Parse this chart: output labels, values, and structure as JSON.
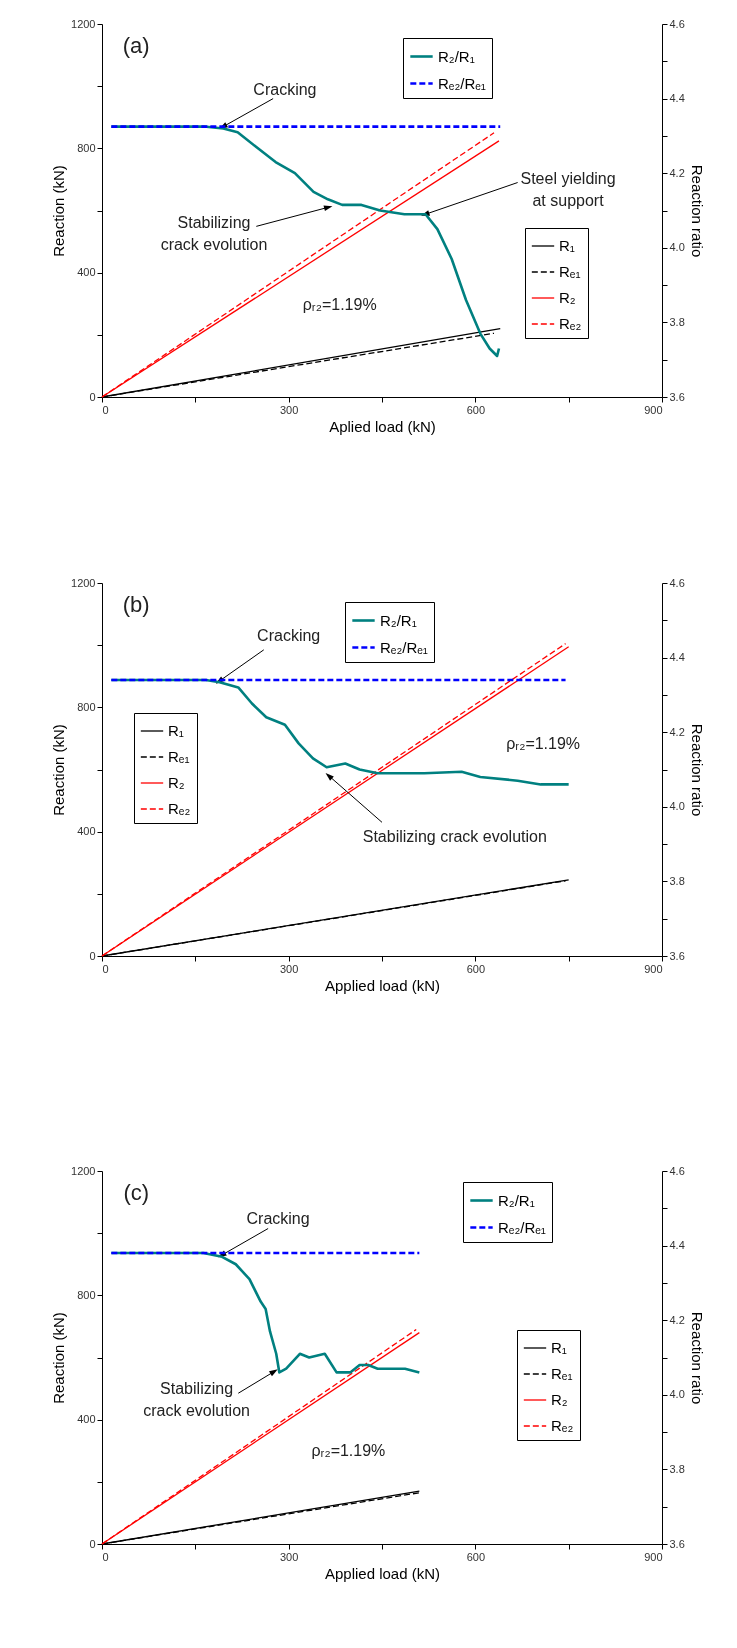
{
  "chart_data": [
    {
      "type": "line",
      "xlabel": "Aplied load (kN)",
      "ylabel": "Reaction (kN)",
      "y2label": "Reaction ratio",
      "xlim": [
        0,
        900
      ],
      "ylim": [
        0,
        1200
      ],
      "y2lim": [
        3.6,
        4.6
      ],
      "xticks": [
        0,
        {
          "value": 150,
          "label": null
        },
        300,
        {
          "value": 450,
          "label": null
        },
        600,
        {
          "value": 750,
          "label": null
        },
        900
      ],
      "yticks": [
        0,
        {
          "value": 200,
          "label": null
        },
        400,
        {
          "value": 600,
          "label": null
        },
        800,
        {
          "value": 1000,
          "label": null
        },
        1200
      ],
      "y2ticks": [
        3.6,
        {
          "value": 3.7,
          "label": null
        },
        3.8,
        {
          "value": 3.9,
          "label": null
        },
        {
          "value": 4,
          "label": "4.0"
        },
        {
          "value": 4.1,
          "label": null
        },
        4.2,
        {
          "value": 4.3,
          "label": null
        },
        4.4,
        {
          "value": 4.5,
          "label": null
        },
        4.6
      ],
      "legend": "top right",
      "series": [
        {
          "name": "R₁",
          "color": "#000000",
          "line_style": "solid",
          "x": [
            0,
            640
          ],
          "values": [
            0,
            220
          ]
        },
        {
          "name": "Rₑ₁",
          "color": "#000000",
          "line_style": "dashed",
          "x": [
            0,
            630
          ],
          "values": [
            0,
            205
          ]
        },
        {
          "name": "R₂",
          "color": "#ff0000",
          "line_style": "solid",
          "x": [
            0,
            638
          ],
          "values": [
            0,
            824
          ]
        },
        {
          "name": "Rₑ₂",
          "color": "#ff0000",
          "line_style": "dashed",
          "x": [
            0,
            630
          ],
          "values": [
            0,
            850
          ]
        },
        {
          "name": "R₂/R₁",
          "color": "#008080",
          "line_style": "solid",
          "axis": "y2",
          "x": [
            15,
            164,
            195,
            218,
            248,
            279,
            310,
            340,
            363,
            386,
            417,
            447,
            486,
            520,
            539,
            562,
            585,
            608,
            623,
            635,
            638
          ],
          "values": [
            4.325,
            4.325,
            4.32,
            4.31,
            4.27,
            4.23,
            4.2,
            4.15,
            4.13,
            4.115,
            4.115,
            4.1,
            4.09,
            4.09,
            4.05,
            3.97,
            3.86,
            3.77,
            3.73,
            3.71,
            3.73
          ]
        },
        {
          "name": "Rₑ₂/Rₑ₁",
          "color": "#0000ff",
          "line_style": "dashed",
          "axis": "y2",
          "x": [
            15,
            640
          ],
          "values": [
            4.325,
            4.325
          ]
        }
      ],
      "annotations": [
        "(a)",
        {
          "text": "Cracking",
          "x": 195,
          "y": 870
        },
        {
          "text": "Stabilizing\ncrack evolution",
          "x": 363,
          "y": 610
        },
        {
          "text": "Steel yielding\nat support",
          "x": 520,
          "y": 588
        },
        "ρᵣ₂=1.19%"
      ]
    },
    {
      "type": "line",
      "xlabel": "Applied load (kN)",
      "ylabel": "Reaction (kN)",
      "y2label": "Reaction ratio",
      "xlim": [
        0,
        900
      ],
      "ylim": [
        0,
        1200
      ],
      "y2lim": [
        3.6,
        4.6
      ],
      "xticks": [
        0,
        {
          "value": 150,
          "label": null
        },
        300,
        {
          "value": 450,
          "label": null
        },
        600,
        {
          "value": 750,
          "label": null
        },
        900
      ],
      "yticks": [
        0,
        {
          "value": 200,
          "label": null
        },
        400,
        {
          "value": 600,
          "label": null
        },
        800,
        {
          "value": 1000,
          "label": null
        },
        1200
      ],
      "y2ticks": [
        3.6,
        {
          "value": 3.7,
          "label": null
        },
        3.8,
        {
          "value": 3.9,
          "label": null
        },
        {
          "value": 4,
          "label": "4.0"
        },
        {
          "value": 4.1,
          "label": null
        },
        4.2,
        {
          "value": 4.3,
          "label": null
        },
        4.4,
        {
          "value": 4.5,
          "label": null
        },
        4.6
      ],
      "legend": "top",
      "series": [
        {
          "name": "R₁",
          "color": "#000000",
          "line_style": "solid",
          "x": [
            0,
            750
          ],
          "values": [
            0,
            245
          ]
        },
        {
          "name": "Rₑ₁",
          "color": "#000000",
          "line_style": "dashed",
          "x": [
            0,
            745
          ],
          "values": [
            0,
            242
          ]
        },
        {
          "name": "R₂",
          "color": "#ff0000",
          "line_style": "solid",
          "x": [
            0,
            750
          ],
          "values": [
            0,
            995
          ]
        },
        {
          "name": "Rₑ₂",
          "color": "#ff0000",
          "line_style": "dashed",
          "x": [
            0,
            745
          ],
          "values": [
            0,
            1005
          ]
        },
        {
          "name": "R₂/R₁",
          "color": "#008080",
          "line_style": "solid",
          "axis": "y2",
          "x": [
            15,
            167,
            189,
            219,
            241,
            264,
            294,
            316,
            339,
            361,
            391,
            414,
            443,
            518,
            578,
            608,
            668,
            705,
            750
          ],
          "values": [
            4.34,
            4.34,
            4.334,
            4.32,
            4.277,
            4.24,
            4.22,
            4.17,
            4.13,
            4.106,
            4.116,
            4.1,
            4.09,
            4.09,
            4.094,
            4.08,
            4.07,
            4.06,
            4.06
          ]
        },
        {
          "name": "Rₑ₂/Rₑ₁",
          "color": "#0000ff",
          "line_style": "dashed",
          "axis": "y2",
          "x": [
            15,
            745
          ],
          "values": [
            4.34,
            4.34
          ]
        }
      ],
      "annotations": [
        "(b)",
        {
          "text": "Cracking",
          "x": 189,
          "y": 885
        },
        {
          "text": "Stabilizing crack evolution",
          "x": 365,
          "y": 579
        },
        "ρᵣ₂=1.19%"
      ]
    },
    {
      "type": "line",
      "xlabel": "Applied load (kN)",
      "ylabel": "Reaction (kN)",
      "y2label": "Reaction ratio",
      "xlim": [
        0,
        900
      ],
      "ylim": [
        0,
        1200
      ],
      "y2lim": [
        3.6,
        4.6
      ],
      "xticks": [
        0,
        {
          "value": 150,
          "label": null
        },
        300,
        {
          "value": 450,
          "label": null
        },
        600,
        {
          "value": 750,
          "label": null
        },
        900
      ],
      "yticks": [
        0,
        {
          "value": 200,
          "label": null
        },
        400,
        {
          "value": 600,
          "label": null
        },
        800,
        {
          "value": 1000,
          "label": null
        },
        1200
      ],
      "y2ticks": [
        3.6,
        {
          "value": 3.7,
          "label": null
        },
        3.8,
        {
          "value": 3.9,
          "label": null
        },
        {
          "value": 4,
          "label": "4.0"
        },
        {
          "value": 4.1,
          "label": null
        },
        4.2,
        {
          "value": 4.3,
          "label": null
        },
        4.4,
        {
          "value": 4.5,
          "label": null
        },
        4.6
      ],
      "legend": "top right",
      "series": [
        {
          "name": "R₁",
          "color": "#000000",
          "line_style": "solid",
          "x": [
            0,
            510
          ],
          "values": [
            0,
            170
          ]
        },
        {
          "name": "Rₑ₁",
          "color": "#000000",
          "line_style": "dashed",
          "x": [
            0,
            510
          ],
          "values": [
            0,
            165
          ]
        },
        {
          "name": "R₂",
          "color": "#ff0000",
          "line_style": "solid",
          "x": [
            0,
            510
          ],
          "values": [
            0,
            680
          ]
        },
        {
          "name": "Rₑ₂",
          "color": "#ff0000",
          "line_style": "dashed",
          "x": [
            0,
            505
          ],
          "values": [
            0,
            690
          ]
        },
        {
          "name": "R₂/R₁",
          "color": "#008080",
          "line_style": "solid",
          "axis": "y2",
          "x": [
            15,
            163,
            193,
            215,
            237,
            255,
            263,
            270,
            280,
            285,
            296,
            318,
            333,
            358,
            377,
            399,
            414,
            428,
            443,
            487,
            510
          ],
          "values": [
            4.38,
            4.38,
            4.37,
            4.35,
            4.31,
            4.25,
            4.23,
            4.17,
            4.11,
            4.06,
            4.07,
            4.11,
            4.1,
            4.11,
            4.06,
            4.06,
            4.08,
            4.08,
            4.07,
            4.07,
            4.06
          ]
        },
        {
          "name": "Rₑ₂/Rₑ₁",
          "color": "#0000ff",
          "line_style": "dashed",
          "axis": "y2",
          "x": [
            15,
            510
          ],
          "values": [
            4.38,
            4.38
          ]
        }
      ],
      "annotations": [
        "(c)",
        {
          "text": "Cracking",
          "x": 193,
          "y": 930
        },
        {
          "text": "Stabilizing\ncrack evolution",
          "x": 276,
          "y": 554
        },
        "ρᵣ₂=1.19%"
      ]
    }
  ]
}
